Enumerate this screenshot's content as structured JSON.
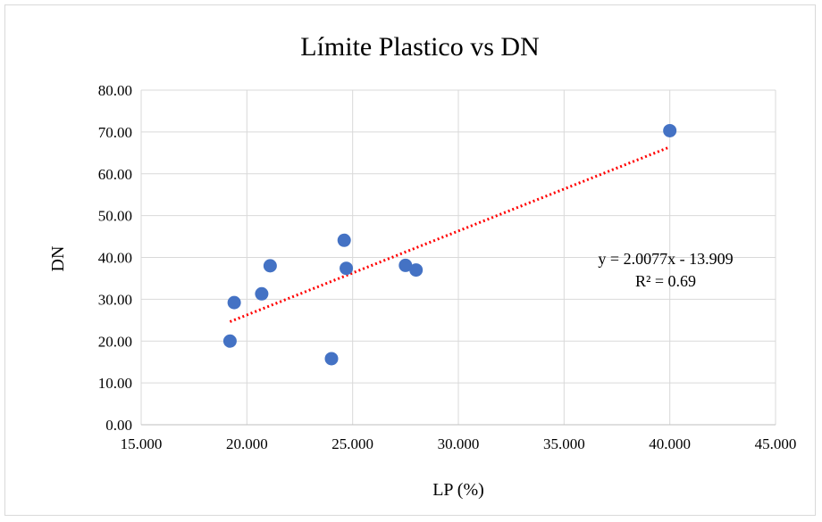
{
  "chart_data": {
    "type": "scatter",
    "title": "Límite Plastico vs DN",
    "xlabel": "LP (%)",
    "ylabel": "DN",
    "xlim": [
      15,
      45
    ],
    "ylim": [
      0,
      80
    ],
    "x_ticks": [
      15,
      20,
      25,
      30,
      35,
      40,
      45
    ],
    "y_ticks": [
      0,
      10,
      20,
      30,
      40,
      50,
      60,
      70,
      80
    ],
    "x_tick_labels": [
      "15.000",
      "20.000",
      "25.000",
      "30.000",
      "35.000",
      "40.000",
      "45.000"
    ],
    "y_tick_labels": [
      "0.00",
      "10.00",
      "20.00",
      "30.00",
      "40.00",
      "50.00",
      "60.00",
      "70.00",
      "80.00"
    ],
    "grid": true,
    "legend": "none",
    "series": [
      {
        "color": "#4472c4",
        "points": [
          {
            "x": 19.2,
            "y": 20.0
          },
          {
            "x": 19.4,
            "y": 29.2
          },
          {
            "x": 20.7,
            "y": 31.3
          },
          {
            "x": 21.1,
            "y": 38.0
          },
          {
            "x": 24.0,
            "y": 15.8
          },
          {
            "x": 24.6,
            "y": 44.1
          },
          {
            "x": 24.7,
            "y": 37.4
          },
          {
            "x": 27.5,
            "y": 38.1
          },
          {
            "x": 28.0,
            "y": 37.0
          },
          {
            "x": 40.0,
            "y": 70.3
          }
        ]
      }
    ],
    "trendline": {
      "type": "linear",
      "color": "#ff0000",
      "style": "dotted",
      "slope": 2.0077,
      "intercept": -13.909,
      "x_range": [
        19.2,
        40.0
      ],
      "equation_label": "y = 2.0077x - 13.909",
      "r2_label": "R² = 0.69"
    }
  }
}
